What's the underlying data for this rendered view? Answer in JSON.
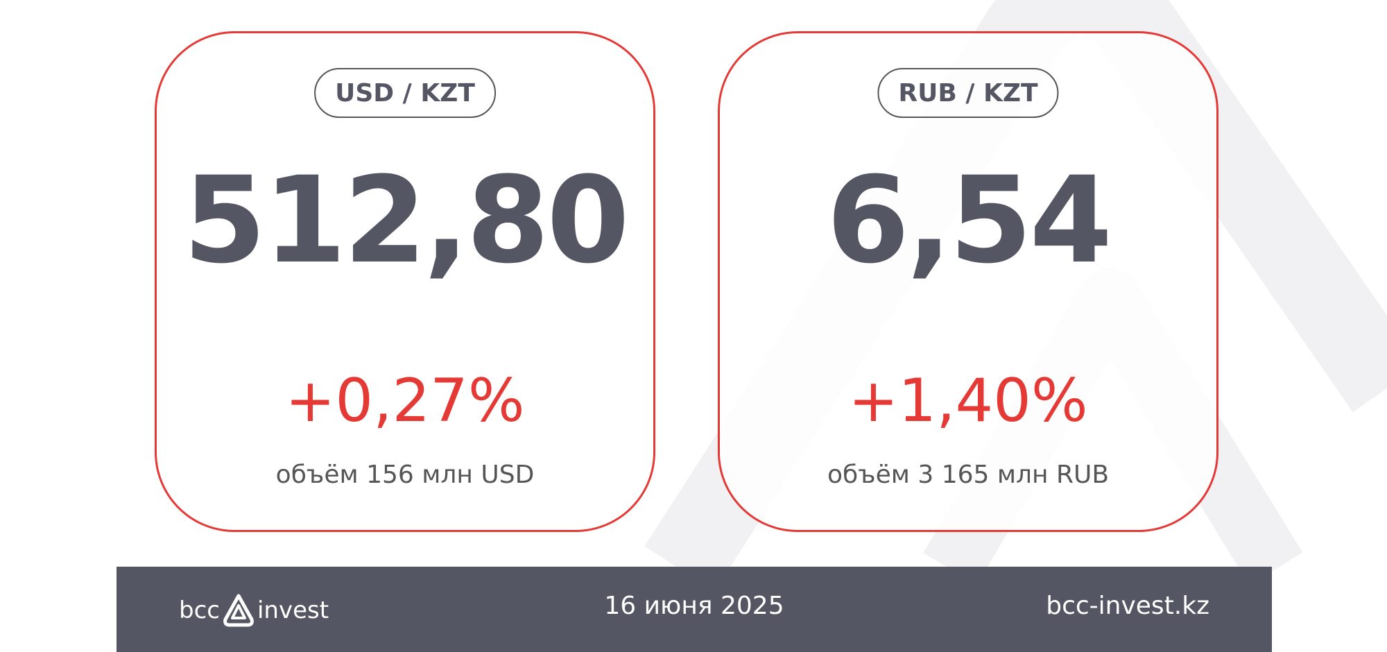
{
  "colors": {
    "accent": "#e53935",
    "text": "#545663",
    "footer_bg": "#545663"
  },
  "cards": [
    {
      "pair": "USD / KZT",
      "rate": "512,80",
      "change": "+0,27%",
      "volume": "объём 156 млн USD"
    },
    {
      "pair": "RUB / KZT",
      "rate": "6,54",
      "change": "+1,40%",
      "volume": "объём 3 165 млн RUB"
    }
  ],
  "footer": {
    "logo_left": "bcc",
    "logo_right": "invest",
    "date": "16 июня 2025",
    "website": "bcc-invest.kz"
  }
}
